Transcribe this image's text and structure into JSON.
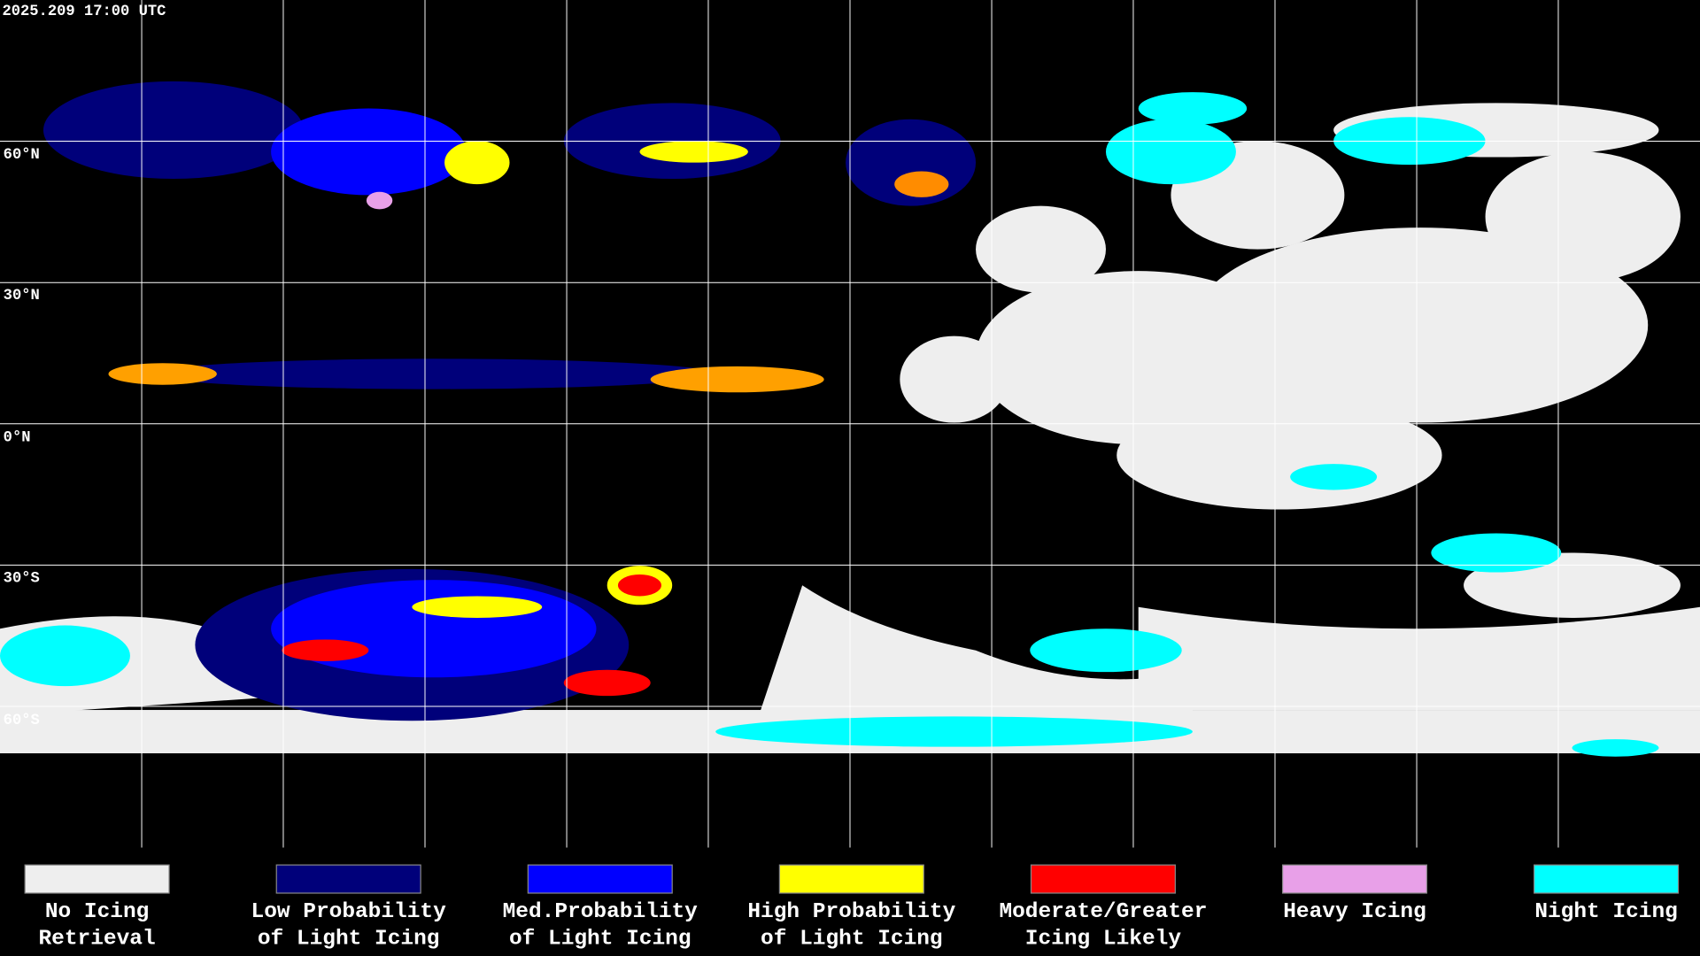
{
  "header": {
    "timestamp": "2025.209 17:00 UTC"
  },
  "map": {
    "latitude_labels": [
      "60°N",
      "30°N",
      "0°N",
      "30°S",
      "60°S"
    ]
  },
  "legend": [
    {
      "label": [
        "No Icing",
        "Retrieval"
      ],
      "color": "#eeeeee"
    },
    {
      "label": [
        "Low Probability",
        "of Light Icing"
      ],
      "color": "#00007a"
    },
    {
      "label": [
        "Med.Probability",
        "of Light Icing"
      ],
      "color": "#0000ff"
    },
    {
      "label": [
        "High Probability",
        "of Light Icing"
      ],
      "color": "#ffff00"
    },
    {
      "label": [
        "Moderate/Greater",
        "Icing Likely"
      ],
      "color": "#ff0000"
    },
    {
      "label": [
        "Heavy Icing"
      ],
      "color": "#e8a0e8"
    },
    {
      "label": [
        "Night Icing"
      ],
      "color": "#00ffff"
    }
  ]
}
